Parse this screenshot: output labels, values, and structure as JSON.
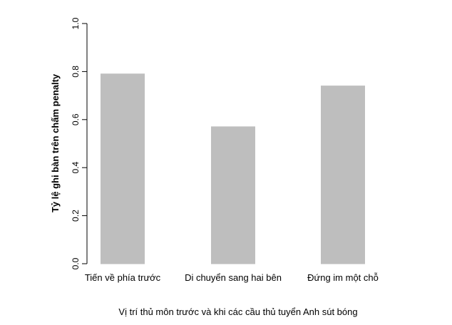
{
  "chart_data": {
    "type": "bar",
    "categories": [
      "Tiến về phía trước",
      "Di chuyển sang hai bên",
      "Đứng im một chỗ"
    ],
    "values": [
      0.79,
      0.57,
      0.74
    ],
    "title": "",
    "xlabel": "Vị trí thủ môn trước và khi các cầu thủ tuyển Anh sút bóng",
    "ylabel": "Tỷ lệ ghi bàn trên chấm penalty",
    "ylim": [
      0,
      1
    ],
    "yticks": [
      "0.0",
      "0.2",
      "0.4",
      "0.6",
      "0.8",
      "1.0"
    ],
    "grid": false,
    "legend": "none",
    "colors": {
      "bar_fill": "#bebebe",
      "bar_stroke": "#bebebe",
      "axis": "#000000"
    }
  }
}
